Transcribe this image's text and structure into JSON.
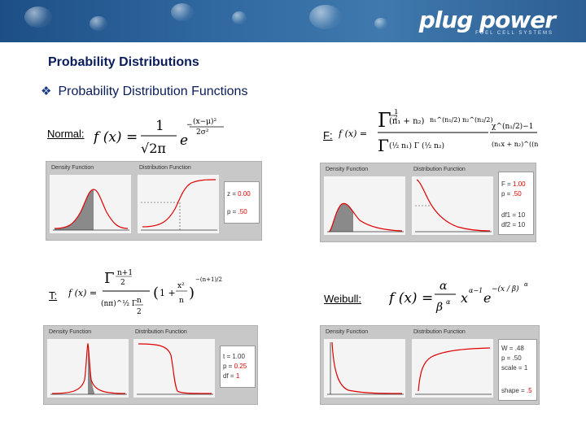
{
  "header": {
    "logo_text": "plug power",
    "logo_sub": "FUEL CELL SYSTEMS"
  },
  "title": "Probability Distributions",
  "bullet": "Probability Distribution Functions",
  "colors": {
    "banner": "#2f679f",
    "title": "#0a1c5a",
    "curve": "#e00000"
  },
  "panels": {
    "normal": {
      "label": "Normal:",
      "density_title": "Density Function",
      "distribution_title": "Distribution Function",
      "params": [
        {
          "name": "z =",
          "value": "0.00"
        },
        {
          "name": "p =",
          "value": ".50"
        }
      ]
    },
    "f": {
      "label": "F:",
      "density_title": "Density Function",
      "distribution_title": "Distribution Function",
      "params": [
        {
          "name": "F =",
          "value": "1.00"
        },
        {
          "name": "p =",
          "value": ".50"
        },
        {
          "name": "df1 =",
          "value": "10"
        },
        {
          "name": "df2 =",
          "value": "10"
        }
      ]
    },
    "t": {
      "label": "T:",
      "density_title": "Density Function",
      "distribution_title": "Distribution Function",
      "params": [
        {
          "name": "t =",
          "value": "1.00"
        },
        {
          "name": "p =",
          "value": "0.25"
        },
        {
          "name": "df =",
          "value": "1"
        }
      ]
    },
    "weibull": {
      "label": "Weibull:",
      "density_title": "Density Function",
      "distribution_title": "Distribution Function",
      "params": [
        {
          "name": "W =",
          "value": ".48"
        },
        {
          "name": "p =",
          "value": ".50"
        },
        {
          "name": "scale =",
          "value": "1"
        },
        {
          "name": "shape =",
          "value": ".5"
        }
      ]
    }
  }
}
